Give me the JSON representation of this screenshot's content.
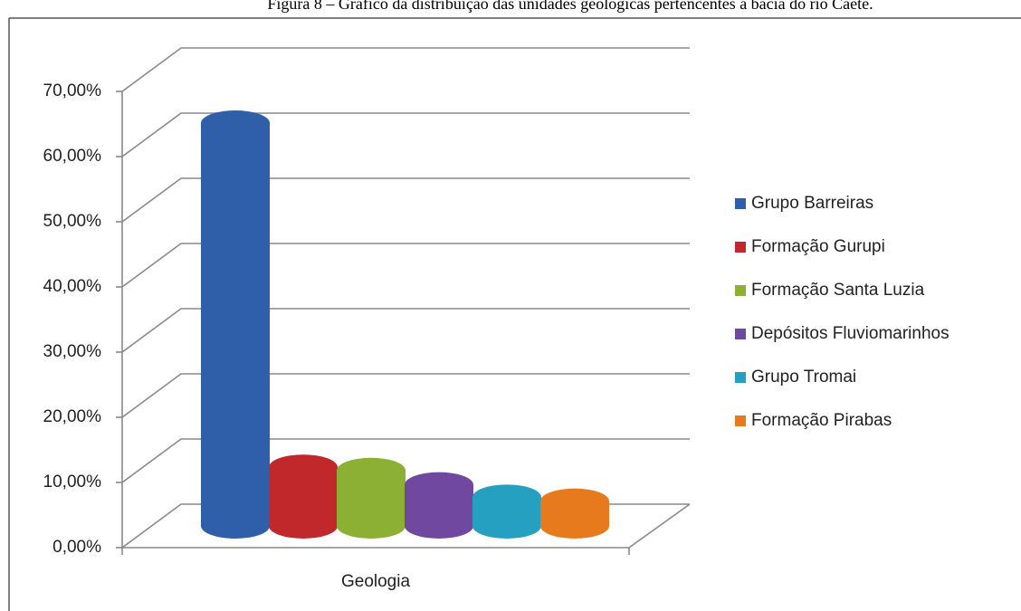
{
  "chart_data": {
    "type": "bar",
    "title": "Figura 8 – Gráfico da distribuição das unidades geológicas pertencentes à bacia do rio Caeté.",
    "categories": [
      "Geologia"
    ],
    "series": [
      {
        "name": "Grupo Barreiras",
        "color": "#2e5fa8",
        "values": [
          61.8
        ]
      },
      {
        "name": "Formação Gurupi",
        "color": "#c0282c",
        "values": [
          9.0
        ]
      },
      {
        "name": "Formação Santa Luzia",
        "color": "#8bb033",
        "values": [
          8.5
        ]
      },
      {
        "name": "Depósitos Fluviomarinhos",
        "color": "#7048a0",
        "values": [
          6.3
        ]
      },
      {
        "name": "Grupo Tromai",
        "color": "#25a0c0",
        "values": [
          4.4
        ]
      },
      {
        "name": "Formação Pirabas",
        "color": "#e87a1e",
        "values": [
          3.8
        ]
      }
    ],
    "ylim": [
      0,
      70
    ],
    "yticks": [
      {
        "value": 0,
        "label": "0,00%"
      },
      {
        "value": 10,
        "label": "10,00%"
      },
      {
        "value": 20,
        "label": "20,00%"
      },
      {
        "value": 30,
        "label": "30,00%"
      },
      {
        "value": 40,
        "label": "40,00%"
      },
      {
        "value": 50,
        "label": "50,00%"
      },
      {
        "value": 60,
        "label": "60,00%"
      },
      {
        "value": 70,
        "label": "70,00%"
      }
    ],
    "grid": true,
    "legend": "right"
  }
}
